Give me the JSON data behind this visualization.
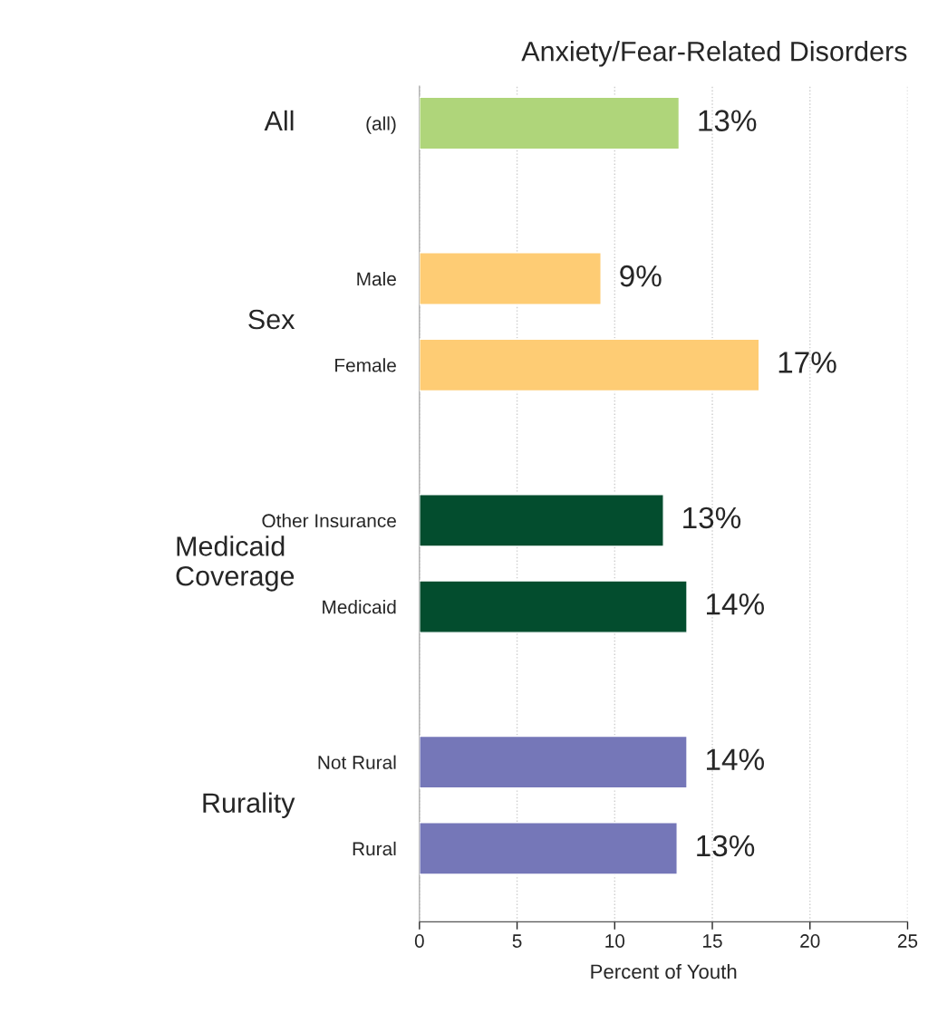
{
  "chart_data": {
    "type": "bar",
    "orientation": "horizontal",
    "title": "Anxiety/Fear-Related Disorders",
    "xlabel": "Percent of Youth",
    "categories": [
      "(all)",
      "Male",
      "Female",
      "Other Insurance",
      "Medicaid",
      "Not Rural",
      "Rural"
    ],
    "values": [
      13.3,
      9.3,
      17.4,
      12.5,
      13.7,
      13.7,
      13.2
    ],
    "value_labels": [
      "13%",
      "9%",
      "17%",
      "13%",
      "14%",
      "14%",
      "13%"
    ],
    "colors": [
      "#afd57a",
      "#fecc74",
      "#fecc74",
      "#034d2e",
      "#034d2e",
      "#7577b8",
      "#7577b8"
    ],
    "annotations": [
      "All",
      "Sex",
      "Medicaid\nCoverage",
      "Rurality"
    ],
    "xlim": [
      0,
      25
    ],
    "xticks": [
      0,
      5,
      10,
      15,
      20,
      25
    ],
    "grid": "x"
  }
}
